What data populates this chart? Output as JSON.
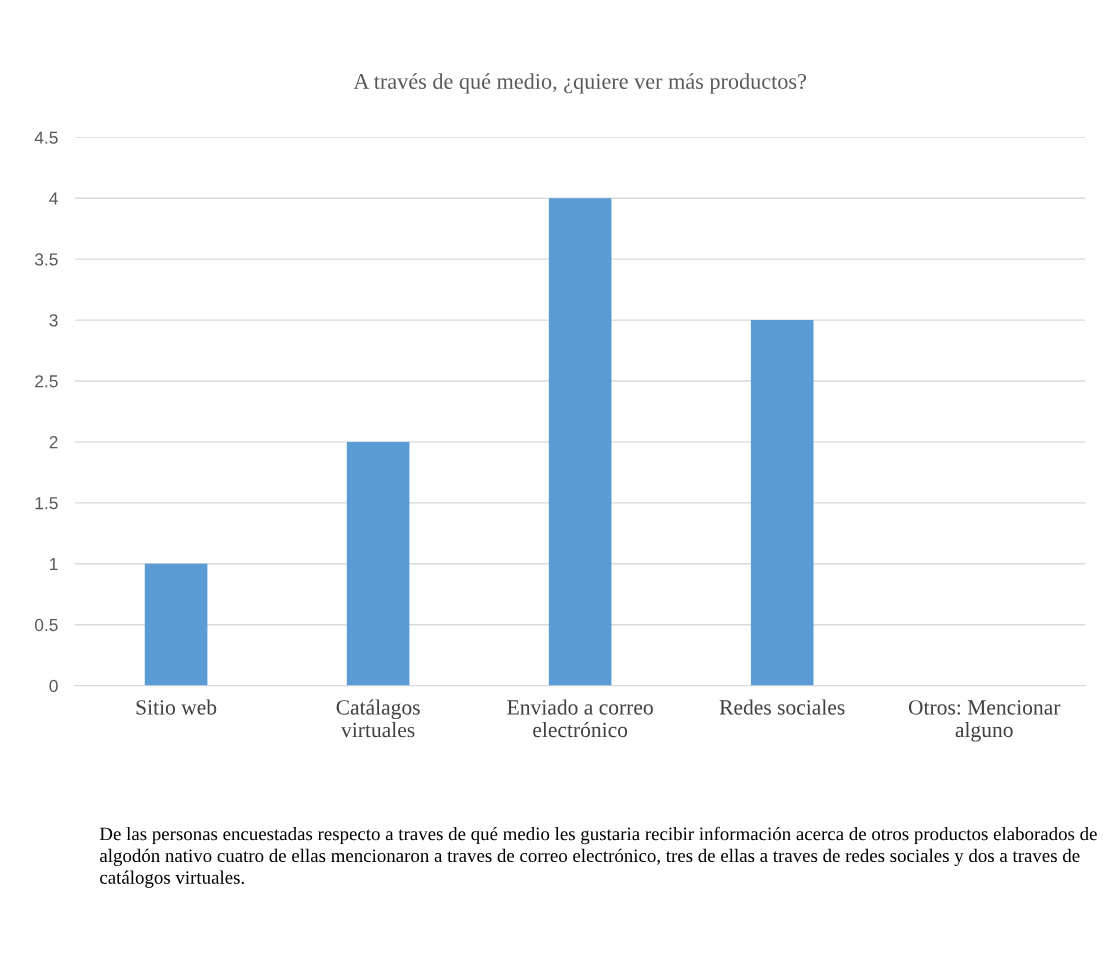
{
  "chart_data": {
    "type": "bar",
    "title": "A través de qué medio, ¿quiere ver más productos?",
    "categories": [
      "Sitio web",
      "Catálagos\nvirtuales",
      "Enviado a correo\nelectrónico",
      "Redes sociales",
      "Otros: Mencionar\nalguno"
    ],
    "values": [
      1,
      2,
      4,
      3,
      0
    ],
    "color": "#5b9bd5",
    "ylim": [
      0,
      4.5
    ],
    "yticks": [
      0,
      0.5,
      1,
      1.5,
      2,
      2.5,
      3,
      3.5,
      4,
      4.5
    ],
    "grid": "y",
    "legend": false,
    "annotations": [
      "De las personas encuestadas respecto a traves de qué medio les gustaria recibir información acerca de otros productos elaborados de algodón nativo cuatro de ellas mencionaron a traves de correo electrónico, tres de ellas a traves de redes sociales y dos a traves de catálogos virtuales."
    ]
  }
}
